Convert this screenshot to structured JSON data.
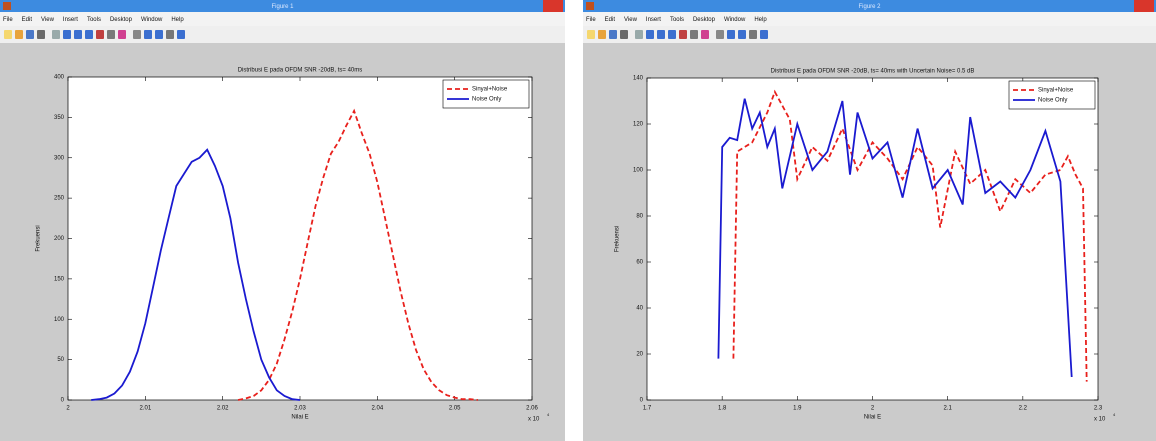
{
  "windows": [
    {
      "title": "Figure 1",
      "menu": [
        "File",
        "Edit",
        "View",
        "Insert",
        "Tools",
        "Desktop",
        "Window",
        "Help"
      ]
    },
    {
      "title": "Figure 2",
      "menu": [
        "File",
        "Edit",
        "View",
        "Insert",
        "Tools",
        "Desktop",
        "Window",
        "Help"
      ]
    }
  ],
  "chart_data": [
    {
      "type": "line",
      "title": "Distribusi E pada OFDM SNR -20dB, ts= 40ms",
      "xlabel": "Nilai E",
      "ylabel": "Frekuensi",
      "x_exponent": {
        "base": "x 10",
        "power": "4"
      },
      "xlim": [
        2,
        2.06
      ],
      "xticks": [
        2,
        2.01,
        2.02,
        2.03,
        2.04,
        2.05,
        2.06
      ],
      "ylim": [
        0,
        400
      ],
      "yticks": [
        0,
        50,
        100,
        150,
        200,
        250,
        300,
        350,
        400
      ],
      "legend": "upper right",
      "series": [
        {
          "name": "Sinyal+Noise",
          "color": "#e8201c",
          "line_style": "dashed",
          "x": [
            2.022,
            2.023,
            2.024,
            2.025,
            2.026,
            2.027,
            2.028,
            2.029,
            2.03,
            2.031,
            2.032,
            2.033,
            2.034,
            2.035,
            2.036,
            2.037,
            2.038,
            2.039,
            2.04,
            2.041,
            2.042,
            2.043,
            2.044,
            2.045,
            2.046,
            2.047,
            2.048,
            2.049,
            2.05,
            2.051,
            2.052,
            2.053
          ],
          "values": [
            0,
            2,
            5,
            12,
            25,
            45,
            75,
            110,
            150,
            195,
            240,
            275,
            305,
            320,
            340,
            358,
            330,
            305,
            270,
            225,
            180,
            135,
            95,
            62,
            38,
            22,
            12,
            6,
            3,
            1,
            1,
            0
          ]
        },
        {
          "name": "Noise Only",
          "color": "#1a1ad0",
          "line_style": "solid",
          "x": [
            2.003,
            2.004,
            2.005,
            2.006,
            2.007,
            2.008,
            2.009,
            2.01,
            2.011,
            2.012,
            2.013,
            2.014,
            2.015,
            2.016,
            2.017,
            2.018,
            2.019,
            2.02,
            2.021,
            2.022,
            2.023,
            2.024,
            2.025,
            2.026,
            2.027,
            2.028,
            2.029,
            2.03
          ],
          "values": [
            0,
            1,
            3,
            8,
            18,
            35,
            60,
            95,
            140,
            185,
            225,
            265,
            280,
            295,
            300,
            310,
            290,
            265,
            225,
            170,
            125,
            85,
            50,
            28,
            12,
            5,
            1,
            0
          ]
        }
      ]
    },
    {
      "type": "line",
      "title": "Distribusi E pada OFDM SNR -20dB, ts= 40ms with Uncertain Noise= 0.5 dB",
      "xlabel": "Nilai E",
      "ylabel": "Frekuensi",
      "x_exponent": {
        "base": "x 10",
        "power": "4"
      },
      "xlim": [
        1.7,
        2.3
      ],
      "xticks": [
        1.7,
        1.8,
        1.9,
        2,
        2.1,
        2.2,
        2.3
      ],
      "ylim": [
        0,
        140
      ],
      "yticks": [
        0,
        20,
        40,
        60,
        80,
        100,
        120,
        140
      ],
      "legend": "upper right",
      "series": [
        {
          "name": "Sinyal+Noise",
          "color": "#e8201c",
          "line_style": "dashed",
          "x": [
            1.815,
            1.82,
            1.84,
            1.86,
            1.87,
            1.89,
            1.9,
            1.92,
            1.94,
            1.96,
            1.98,
            2,
            2.02,
            2.04,
            2.06,
            2.08,
            2.09,
            2.11,
            2.13,
            2.15,
            2.17,
            2.19,
            2.21,
            2.23,
            2.25,
            2.26,
            2.27,
            2.28,
            2.285
          ],
          "values": [
            18,
            108,
            112,
            125,
            134,
            122,
            96,
            110,
            104,
            118,
            100,
            112,
            105,
            96,
            110,
            102,
            75,
            108,
            94,
            100,
            82,
            96,
            90,
            98,
            100,
            106,
            98,
            92,
            8
          ]
        },
        {
          "name": "Noise Only",
          "color": "#1a1ad0",
          "line_style": "solid",
          "x": [
            1.795,
            1.8,
            1.81,
            1.82,
            1.83,
            1.84,
            1.85,
            1.86,
            1.87,
            1.88,
            1.9,
            1.92,
            1.94,
            1.96,
            1.97,
            1.98,
            2,
            2.02,
            2.04,
            2.06,
            2.08,
            2.1,
            2.12,
            2.13,
            2.15,
            2.17,
            2.19,
            2.21,
            2.23,
            2.25,
            2.265
          ],
          "values": [
            18,
            110,
            114,
            113,
            131,
            118,
            125,
            110,
            118,
            92,
            120,
            100,
            108,
            130,
            98,
            125,
            105,
            112,
            88,
            118,
            92,
            100,
            85,
            123,
            90,
            95,
            88,
            100,
            117,
            95,
            10
          ]
        }
      ]
    }
  ]
}
